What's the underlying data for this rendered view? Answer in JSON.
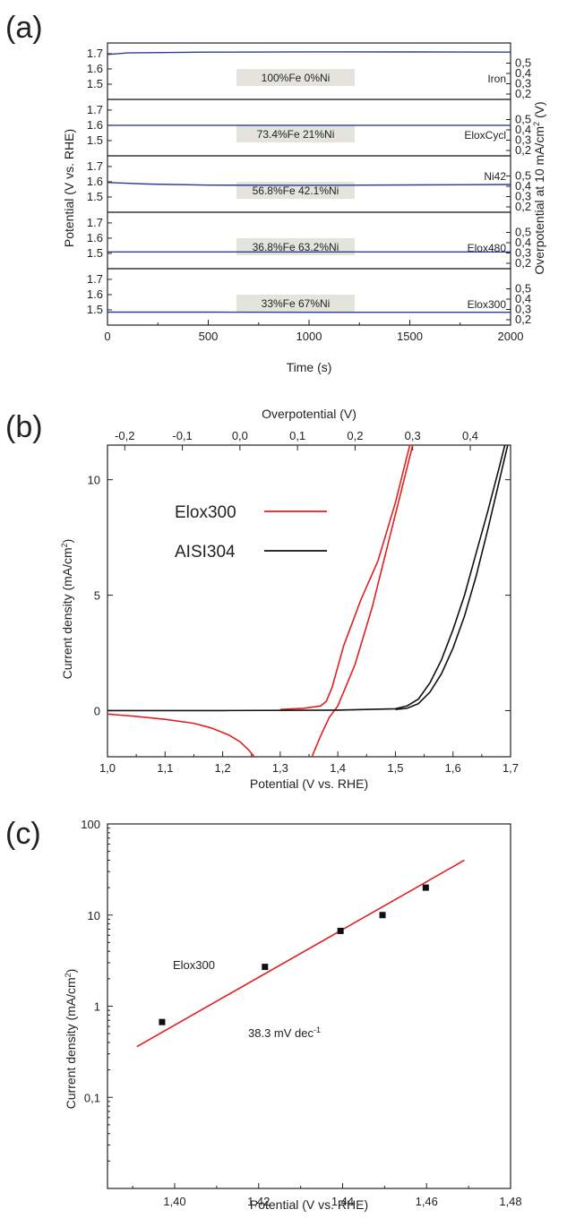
{
  "chart_data": [
    {
      "panel": "(a)",
      "type": "line",
      "xlabel": "Time (s)",
      "ylabel": "Potential (V vs. RHE)",
      "ylabel_right": "Overpotential at 10 mA/cm",
      "ylabel_right_sup": "2",
      "ylabel_right_end": " (V)",
      "xlim": [
        0,
        2000
      ],
      "x_ticks": [
        "0",
        "500",
        "1000",
        "1500",
        "2000"
      ],
      "ylim": [
        1.4,
        1.77
      ],
      "y_ticks": [
        "1.5",
        "1.6",
        "1.7"
      ],
      "y_ticks_right": [
        "0,2",
        "0,3",
        "0,4",
        "0,5"
      ],
      "series_color": "#2b3d9a",
      "subplots": [
        {
          "name": "Iron",
          "composition": "100%Fe   0%Ni",
          "x": [
            0,
            100,
            500,
            1000,
            1500,
            2000
          ],
          "y": [
            1.695,
            1.705,
            1.71,
            1.712,
            1.711,
            1.71
          ]
        },
        {
          "name": "EloxCycl",
          "composition": "73.4%Fe   21%Ni",
          "x": [
            0,
            500,
            1000,
            1500,
            2000
          ],
          "y": [
            1.6,
            1.6,
            1.6,
            1.6,
            1.6
          ]
        },
        {
          "name": "Ni42",
          "composition": "56.8%Fe   42.1%Ni",
          "x": [
            0,
            200,
            500,
            1000,
            1500,
            2000
          ],
          "y": [
            1.595,
            1.585,
            1.578,
            1.577,
            1.579,
            1.582
          ]
        },
        {
          "name": "Elox480",
          "composition": "36.8%Fe   63.2%Ni",
          "x": [
            0,
            500,
            1000,
            1500,
            2000
          ],
          "y": [
            1.51,
            1.51,
            1.51,
            1.51,
            1.51
          ]
        },
        {
          "name": "Elox300",
          "composition": "33%Fe   67%Ni",
          "x": [
            0,
            500,
            1000,
            1500,
            2000
          ],
          "y": [
            1.485,
            1.485,
            1.484,
            1.484,
            1.484
          ]
        }
      ]
    },
    {
      "panel": "(b)",
      "type": "line",
      "xlabel": "Potential (V vs. RHE)",
      "ylabel": "Current density (mA/cm",
      "ylabel_sup": "2",
      "ylabel_end": ")",
      "top_xlabel": "Overpotential (V)",
      "xlim": [
        1.0,
        1.7
      ],
      "x_ticks": [
        "1,0",
        "1,1",
        "1,2",
        "1,3",
        "1,4",
        "1,5",
        "1,6",
        "1,7"
      ],
      "top_ticks": [
        "-0,2",
        "-0,1",
        "0,0",
        "0,1",
        "0,2",
        "0,3",
        "0,4"
      ],
      "ylim": [
        -2,
        11.5
      ],
      "y_ticks": [
        "0",
        "5",
        "10"
      ],
      "series": [
        {
          "name": "Elox300",
          "color": "#e02020",
          "segments": [
            {
              "x": [
                1.0,
                1.05,
                1.1,
                1.15,
                1.18,
                1.21,
                1.23,
                1.245,
                1.255
              ],
              "y": [
                -0.15,
                -0.25,
                -0.38,
                -0.55,
                -0.75,
                -1.05,
                -1.35,
                -1.7,
                -2.0
              ]
            },
            {
              "x": [
                1.355,
                1.37,
                1.385,
                1.4,
                1.43,
                1.46,
                1.49,
                1.51,
                1.53
              ],
              "y": [
                -2.0,
                -1.1,
                -0.3,
                0.2,
                2.0,
                4.5,
                7.5,
                9.5,
                11.5
              ]
            },
            {
              "x": [
                1.3,
                1.34,
                1.37,
                1.38,
                1.39,
                1.41,
                1.44,
                1.47,
                1.5,
                1.525
              ],
              "y": [
                0.05,
                0.1,
                0.2,
                0.4,
                1.0,
                2.8,
                4.8,
                6.5,
                9.0,
                11.5
              ]
            }
          ]
        },
        {
          "name": "AISI304",
          "color": "#111111",
          "segments": [
            {
              "x": [
                1.0,
                1.2,
                1.4,
                1.5,
                1.52,
                1.54,
                1.56,
                1.58,
                1.6,
                1.62,
                1.64,
                1.66,
                1.68,
                1.69
              ],
              "y": [
                0,
                0,
                0.02,
                0.08,
                0.2,
                0.5,
                1.2,
                2.2,
                3.5,
                5.0,
                6.8,
                8.6,
                10.5,
                11.5
              ]
            },
            {
              "x": [
                1.5,
                1.52,
                1.54,
                1.56,
                1.58,
                1.6,
                1.62,
                1.64,
                1.66,
                1.68,
                1.695
              ],
              "y": [
                0.05,
                0.1,
                0.3,
                0.8,
                1.6,
                2.7,
                4.1,
                5.8,
                7.8,
                9.9,
                11.5
              ]
            }
          ]
        }
      ]
    },
    {
      "panel": "(c)",
      "type": "scatter",
      "xlabel": "Potential (V vs. RHE)",
      "ylabel": "Current density (mA/cm",
      "ylabel_sup": "2",
      "ylabel_end": ")",
      "x_scale": "linear",
      "y_scale": "log",
      "xlim": [
        1.384,
        1.48
      ],
      "x_ticks": [
        {
          "v": 1.4,
          "label": "1,40"
        },
        {
          "v": 1.42,
          "label": "1,42"
        },
        {
          "v": 1.44,
          "label": "1,44"
        },
        {
          "v": 1.46,
          "label": "1,46"
        },
        {
          "v": 1.48,
          "label": "1,48"
        }
      ],
      "ylim": [
        0.01,
        100
      ],
      "y_ticks": [
        {
          "v": 100,
          "label": "100"
        },
        {
          "v": 10,
          "label": "10"
        },
        {
          "v": 1,
          "label": "1"
        },
        {
          "v": 0.1,
          "label": "0,1"
        }
      ],
      "points": {
        "x": [
          1.397,
          1.4215,
          1.4395,
          1.4495,
          1.4598
        ],
        "y": [
          0.67,
          2.7,
          6.7,
          10.0,
          20.0
        ]
      },
      "fit": {
        "x": [
          1.391,
          1.469
        ],
        "y": [
          0.36,
          40.0
        ],
        "color": "#e02020"
      },
      "sample_label": "Elox300",
      "slope_text": "38.3 mV dec",
      "slope_sup": "-1"
    }
  ]
}
